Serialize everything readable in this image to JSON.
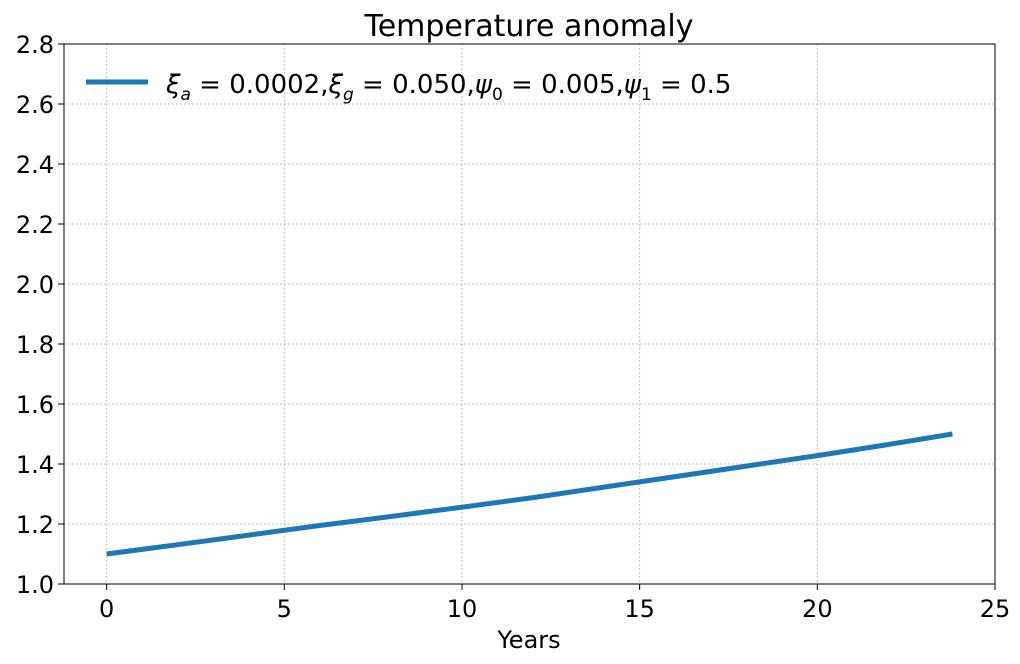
{
  "chart_data": {
    "type": "line",
    "title": "Temperature anomaly",
    "xlabel": "Years",
    "ylabel": "",
    "xlim": [
      -1.2,
      25
    ],
    "ylim": [
      1.0,
      2.8
    ],
    "xticks": [
      0,
      5,
      10,
      15,
      20,
      25
    ],
    "yticks": [
      1.0,
      1.2,
      1.4,
      1.6,
      1.8,
      2.0,
      2.2,
      2.4,
      2.6,
      2.8
    ],
    "xtick_labels": [
      "0",
      "5",
      "10",
      "15",
      "20",
      "25"
    ],
    "ytick_labels": [
      "1.0",
      "1.2",
      "1.4",
      "1.6",
      "1.8",
      "2.0",
      "2.2",
      "2.4",
      "2.6",
      "2.8"
    ],
    "grid": true,
    "legend_position": "upper-left",
    "series": [
      {
        "name": "ξa = 0.0002,ξg = 0.050,ψ0 = 0.005,ψ1 = 0.5",
        "color": "#1f77b4",
        "x": [
          0,
          2,
          4,
          6,
          8,
          10,
          12,
          14,
          16,
          18,
          20,
          22,
          23.8
        ],
        "y": [
          1.1,
          1.131,
          1.163,
          1.195,
          1.225,
          1.256,
          1.288,
          1.323,
          1.358,
          1.393,
          1.428,
          1.465,
          1.5
        ]
      }
    ]
  }
}
